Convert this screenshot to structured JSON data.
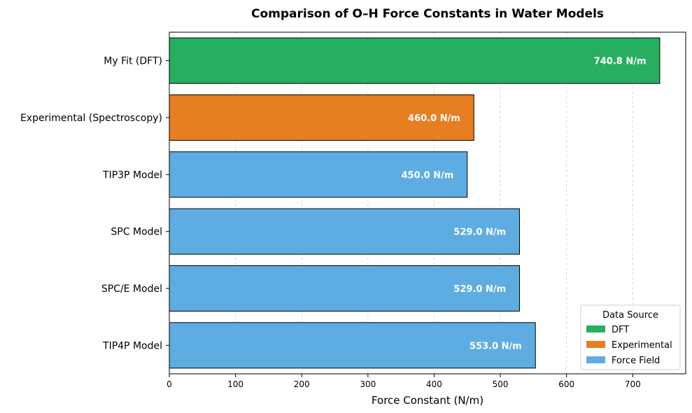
{
  "chart_data": {
    "type": "bar",
    "orientation": "horizontal",
    "title": "Comparison of O–H Force Constants in Water Models",
    "xlabel": "Force Constant (N/m)",
    "ylabel": "",
    "xlim": [
      0,
      780
    ],
    "xticks": [
      0,
      100,
      200,
      300,
      400,
      500,
      600,
      700
    ],
    "grid": "x dashed",
    "categories": [
      "My Fit (DFT)",
      "Experimental (Spectroscopy)",
      "TIP3P Model",
      "SPC Model",
      "SPC/E Model",
      "TIP4P Model"
    ],
    "values": [
      740.8,
      460.0,
      450.0,
      529.0,
      529.0,
      553.0
    ],
    "value_labels": [
      "740.8 N/m",
      "460.0 N/m",
      "450.0 N/m",
      "529.0 N/m",
      "529.0 N/m",
      "553.0 N/m"
    ],
    "bar_sources": [
      "DFT",
      "Experimental",
      "Force Field",
      "Force Field",
      "Force Field",
      "Force Field"
    ],
    "legend": {
      "title": "Data Source",
      "placement": "lower-right",
      "entries": [
        {
          "label": "DFT",
          "color": "#27ae60"
        },
        {
          "label": "Experimental",
          "color": "#e67e22"
        },
        {
          "label": "Force Field",
          "color": "#5dade2"
        }
      ]
    }
  }
}
